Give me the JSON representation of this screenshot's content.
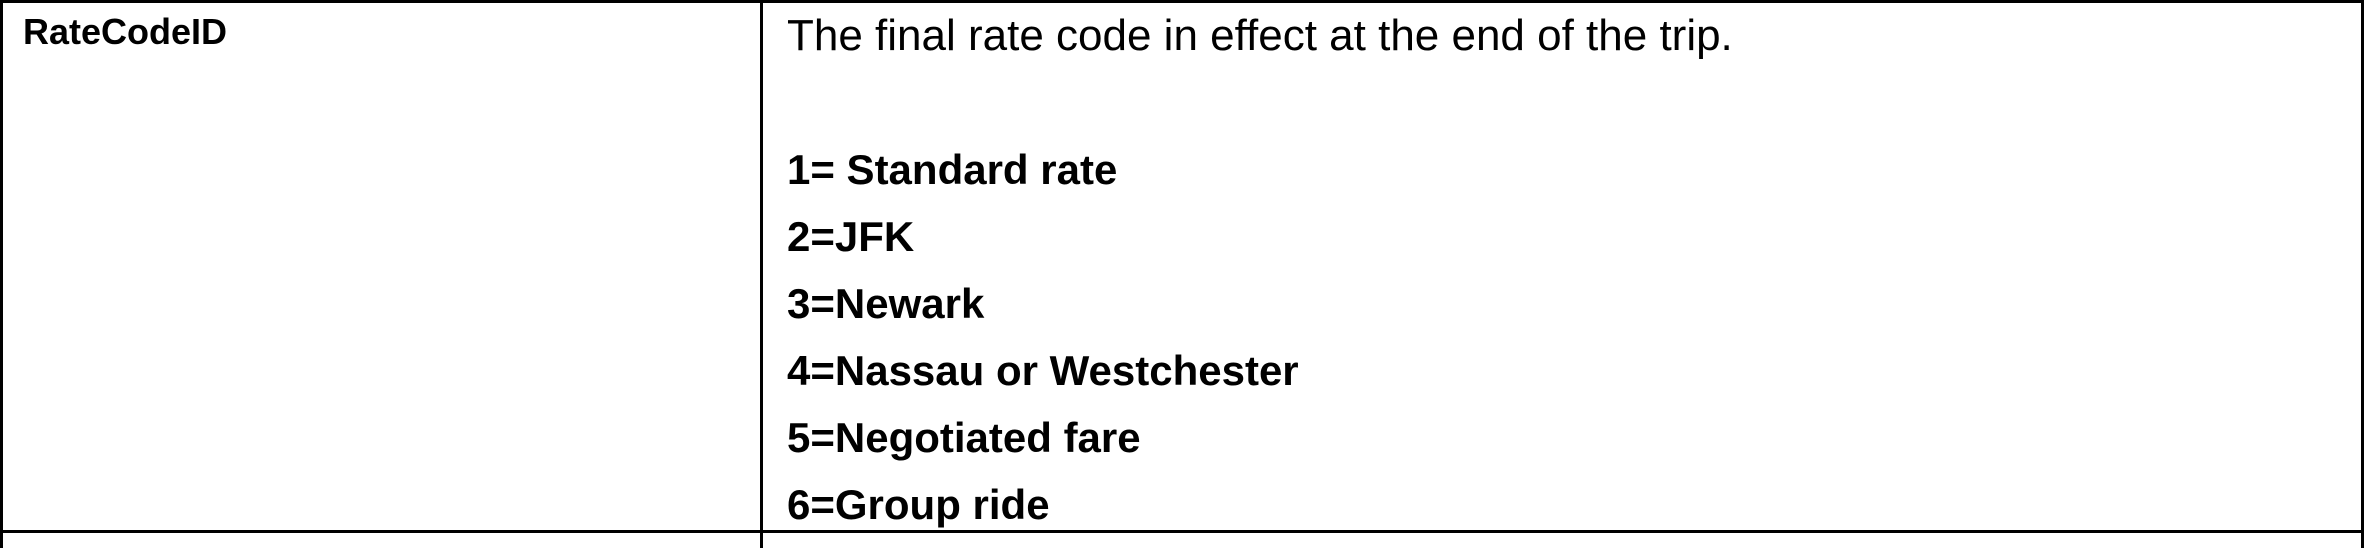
{
  "row": {
    "field_name": "RateCodeID",
    "description": "The final rate code in effect at the end of the trip.",
    "codes": [
      "1= Standard rate",
      "2=JFK",
      "3=Newark",
      "4=Nassau or Westchester",
      "5=Negotiated fare",
      "6=Group ride"
    ]
  }
}
